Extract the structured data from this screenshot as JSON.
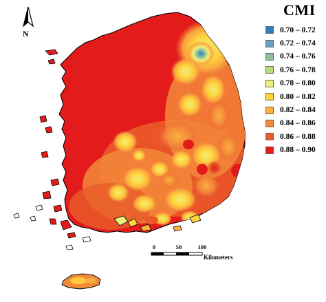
{
  "north": {
    "label": "N",
    "icon": "north-arrow-icon"
  },
  "legend": {
    "title": "CMI",
    "items": [
      {
        "label": "0.70 – 0.72",
        "color": "#2e7fc0"
      },
      {
        "label": "0.72 – 0.74",
        "color": "#6aa3c4"
      },
      {
        "label": "0.74 – 0.76",
        "color": "#8fbf9a"
      },
      {
        "label": "0.76 – 0.78",
        "color": "#b9dd7c"
      },
      {
        "label": "0.78 – 0.80",
        "color": "#edf07a"
      },
      {
        "label": "0.80 – 0.82",
        "color": "#ffd33d"
      },
      {
        "label": "0.82 – 0.84",
        "color": "#fbb040"
      },
      {
        "label": "0.84 – 0.86",
        "color": "#f38a3a"
      },
      {
        "label": "0.86 – 0.88",
        "color": "#e95c2a"
      },
      {
        "label": "0.88 – 0.90",
        "color": "#e41b1b"
      }
    ]
  },
  "scalebar": {
    "ticks": [
      "0",
      "50",
      "100"
    ],
    "unit": "Kilometers"
  }
}
